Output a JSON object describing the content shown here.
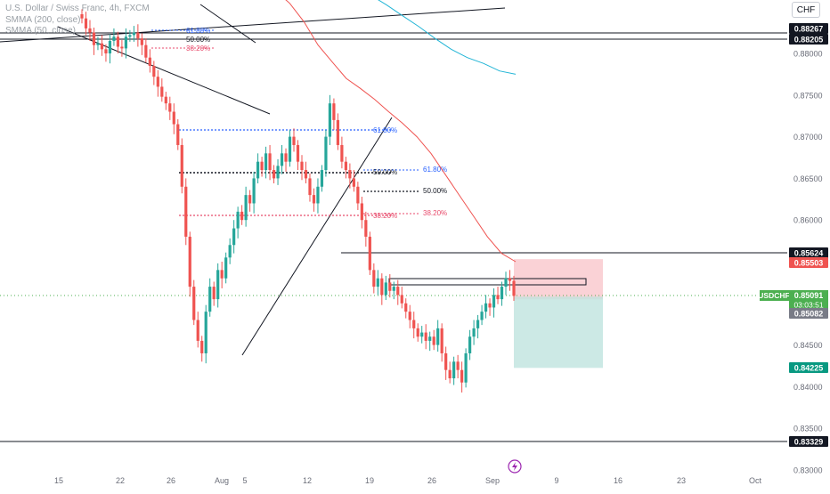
{
  "header": {
    "title": "U.S. Dollar / Swiss Franc, 4h, FXCM",
    "indicator1": "SMMA (200, close)",
    "indicator2": "SMMA (50, close)"
  },
  "currency_button": "CHF",
  "colors": {
    "up": "#26a69a",
    "down": "#ef5350",
    "smma50": "#ef5350",
    "smma200": "#22b5d6",
    "fib_blue": "#2962ff",
    "fib_red": "#e84a6b",
    "fib_black": "#131722",
    "target_zone": "#bfe4de",
    "stop_zone": "#f9c7cc",
    "price_badge": "#4caf50"
  },
  "labels": {
    "price_axis": [
      "0.88000",
      "0.87500",
      "0.87000",
      "0.86500",
      "0.86000",
      "0.85500",
      "0.85000",
      "0.84500",
      "0.84000",
      "0.83500",
      "0.83000"
    ],
    "time_axis": [
      "15",
      "22",
      "26",
      "Aug",
      "5",
      "12",
      "19",
      "26",
      "Sep",
      "9",
      "16",
      "23",
      "Oct"
    ],
    "badges": {
      "level_a": "0.88267",
      "level_b": "0.88205",
      "level_c": "0.85624",
      "smma_value": "0.85503",
      "symbol": "USDCHF",
      "last": "0.85091",
      "countdown": "03:03:51",
      "bid": "0.85082",
      "target": "0.84225",
      "bottom_level": "0.83329"
    },
    "fib_upper": [
      "61.80%",
      "50.00%",
      "38.20%"
    ],
    "fib_lower_a": [
      "61.80%",
      "50.00%",
      "38.20%"
    ],
    "fib_lower_b": [
      "61.80%",
      "50.00%",
      "38.20%"
    ]
  },
  "chart_data": {
    "type": "candlestick",
    "symbol": "USDCHF",
    "title": "U.S. Dollar / Swiss Franc, 4h, FXCM",
    "interval": "4h",
    "ylim": [
      0.8293,
      0.8832
    ],
    "series_close": [
      0.8842,
      0.883,
      0.8825,
      0.881,
      0.8812,
      0.8805,
      0.88,
      0.8815,
      0.882,
      0.8808,
      0.8806,
      0.882,
      0.8822,
      0.8825,
      0.8818,
      0.881,
      0.8795,
      0.8785,
      0.8772,
      0.876,
      0.8748,
      0.874,
      0.873,
      0.8715,
      0.869,
      0.864,
      0.858,
      0.852,
      0.848,
      0.8455,
      0.844,
      0.849,
      0.852,
      0.8505,
      0.854,
      0.853,
      0.8555,
      0.857,
      0.859,
      0.861,
      0.86,
      0.863,
      0.862,
      0.865,
      0.867,
      0.866,
      0.868,
      0.866,
      0.865,
      0.8665,
      0.868,
      0.867,
      0.87,
      0.869,
      0.867,
      0.866,
      0.865,
      0.863,
      0.862,
      0.864,
      0.866,
      0.87,
      0.874,
      0.872,
      0.869,
      0.867,
      0.866,
      0.865,
      0.864,
      0.862,
      0.86,
      0.858,
      0.854,
      0.852,
      0.853,
      0.851,
      0.8525,
      0.8515,
      0.852,
      0.851,
      0.85,
      0.849,
      0.848,
      0.847,
      0.846,
      0.8465,
      0.8455,
      0.846,
      0.845,
      0.847,
      0.844,
      0.842,
      0.841,
      0.843,
      0.842,
      0.8405,
      0.844,
      0.846,
      0.847,
      0.848,
      0.849,
      0.85,
      0.8495,
      0.851,
      0.8505,
      0.852,
      0.853,
      0.8527,
      0.8509
    ],
    "smma50": [
      0.892,
      0.8905,
      0.889,
      0.8875,
      0.886,
      0.8838,
      0.881,
      0.879,
      0.877,
      0.8758,
      0.8745,
      0.873,
      0.8716,
      0.87,
      0.868,
      0.8655,
      0.863,
      0.8605,
      0.858,
      0.856,
      0.855
    ],
    "smma200": [
      0.89,
      0.8885,
      0.887,
      0.8858,
      0.8845,
      0.8832,
      0.8818,
      0.8805,
      0.8795,
      0.8788,
      0.8779,
      0.8775
    ],
    "horizontal_levels": [
      0.88267,
      0.88205,
      0.85624,
      0.83329
    ],
    "fibonacci": [
      {
        "levels": [
          "61.80%",
          "50.00%",
          "38.20%"
        ]
      },
      {
        "levels": [
          "61.80%",
          "50.00%",
          "38.20%"
        ]
      },
      {
        "levels": [
          "61.80%",
          "50.00%",
          "38.20%"
        ]
      }
    ],
    "position": {
      "entry": 0.85091,
      "stop": 0.8553,
      "target": 0.84225
    },
    "last_price": 0.85091,
    "bid": 0.85082,
    "countdown": "03:03:51"
  }
}
